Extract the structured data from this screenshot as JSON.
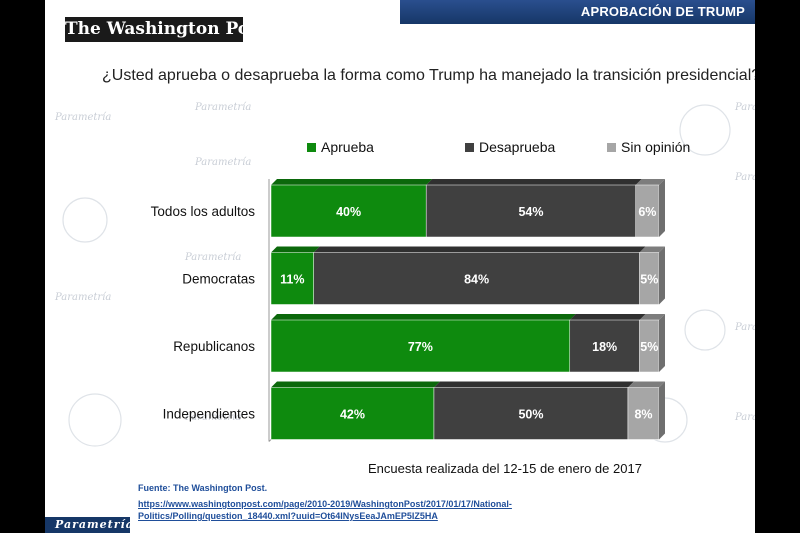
{
  "header": {
    "title": "APROBACIÓN DE TRUMP",
    "logo_text": "The Washington Post"
  },
  "question": "¿Usted aprueba o desaprueba la forma como Trump ha manejado la transición presidencial?",
  "footer": {
    "survey_note": "Encuesta realizada del 12-15 de enero de 2017",
    "source": "Fuente: The Washington Post.",
    "url": "https://www.washingtonpost.com/page/2010-2019/WashingtonPost/2017/01/17/National-Politics/Polling/question_18440.xml?uuid=Ot64lNysEeaJAmEP5IZ5HA",
    "brand": "Parametría"
  },
  "watermark": {
    "text": "Parametría"
  },
  "chart_data": {
    "type": "bar",
    "orientation": "horizontal",
    "stacked": true,
    "percent_stacked": true,
    "categories": [
      "Todos los adultos",
      "Democratas",
      "Republicanos",
      "Independientes"
    ],
    "series": [
      {
        "name": "Aprueba",
        "color": "#0e8a0e",
        "values": [
          40,
          11,
          77,
          42
        ],
        "labels": [
          "40%",
          "11%",
          "77%",
          "42%"
        ]
      },
      {
        "name": "Desaprueba",
        "color": "#404040",
        "values": [
          54,
          84,
          18,
          50
        ],
        "labels": [
          "54%",
          "84%",
          "18%",
          "50%"
        ]
      },
      {
        "name": "Sin opinión",
        "color": "#a6a6a6",
        "values": [
          6,
          5,
          5,
          8
        ],
        "labels": [
          "6%",
          "5%",
          "5%",
          "8%"
        ]
      }
    ],
    "xlim": [
      0,
      100
    ],
    "legend_position": "top",
    "grid": false
  }
}
